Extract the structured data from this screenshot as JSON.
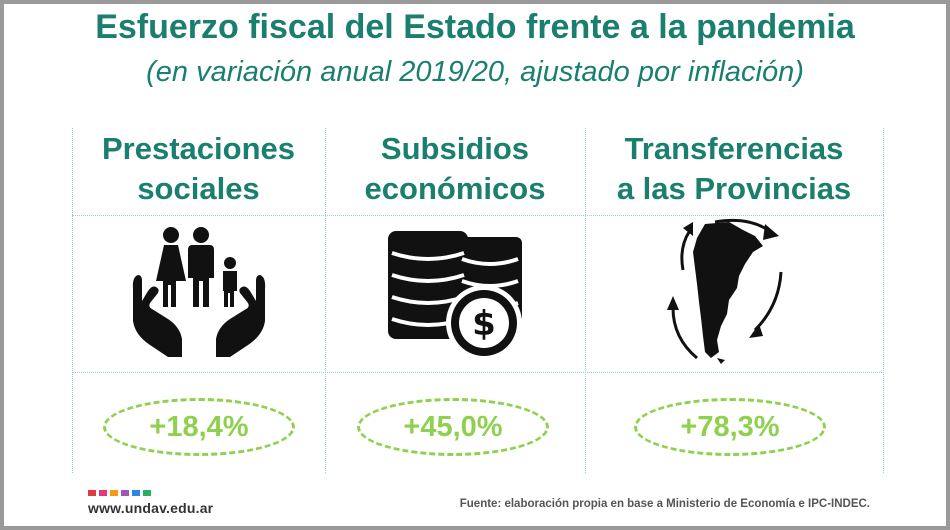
{
  "title": "Esfuerzo fiscal del Estado frente a la pandemia",
  "subtitle": "(en variación anual 2019/20, ajustado por inflación)",
  "columns": [
    {
      "label": "Prestaciones\nsociales",
      "value": "+18,4%",
      "icon": "family-in-hands-icon"
    },
    {
      "label": "Subsidios\neconómicos",
      "value": "+45,0%",
      "icon": "coins-dollar-icon"
    },
    {
      "label": "Transferencias\na las Provincias",
      "value": "+78,3%",
      "icon": "argentina-map-arrows-icon"
    }
  ],
  "footer": {
    "url": "www.undav.edu.ar",
    "source": "Fuente: elaboración propia en base a Ministerio de Economía e IPC-INDEC."
  },
  "colors": {
    "title": "#1a7f6e",
    "accent": "#8fd14f",
    "logo": [
      "#e03a3e",
      "#e8357b",
      "#f39c12",
      "#9b59b6",
      "#2e86de",
      "#27ae60"
    ]
  }
}
